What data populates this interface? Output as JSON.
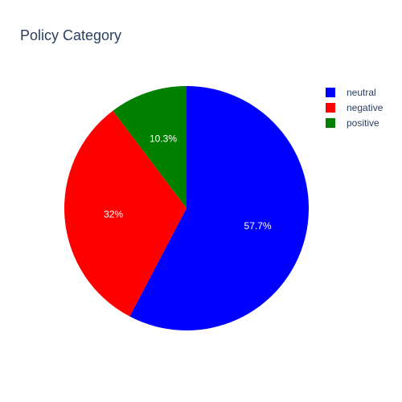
{
  "chart_data": {
    "type": "pie",
    "title": "Policy Category",
    "labels": [
      "neutral",
      "negative",
      "positive"
    ],
    "values": [
      57.7,
      32,
      10.3
    ],
    "value_labels": [
      "57.7%",
      "32%",
      "10.3%"
    ],
    "colors": [
      "#0000ff",
      "#ff0000",
      "#008000"
    ],
    "legend_position": "top-right",
    "direction": "clockwise",
    "start": "12 o'clock"
  }
}
